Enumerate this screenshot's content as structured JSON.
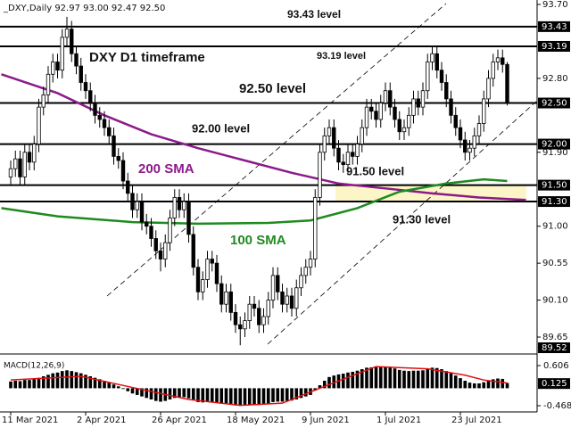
{
  "chart_data": [
    {
      "type": "candlestick",
      "title": "_DXY,Daily  92.97 93.00 92.47 92.50",
      "annotation": "DXY D1 timeframe",
      "categories": [
        "11 Mar 2021",
        null,
        null,
        null,
        null,
        null,
        null,
        null,
        null,
        null,
        null,
        null,
        null,
        null,
        null,
        null,
        "2 Apr 2021",
        null,
        null,
        null,
        null,
        null,
        null,
        null,
        null,
        null,
        null,
        null,
        null,
        null,
        null,
        null,
        "26 Apr 2021",
        null,
        null,
        null,
        null,
        null,
        null,
        null,
        null,
        null,
        null,
        null,
        null,
        null,
        null,
        null,
        "18 May 2021",
        null,
        null,
        null,
        null,
        null,
        null,
        null,
        null,
        null,
        null,
        null,
        null,
        null,
        null,
        null,
        "9 Jun 2021",
        null,
        null,
        null,
        null,
        null,
        null,
        null,
        null,
        null,
        null,
        null,
        null,
        null,
        null,
        null,
        "1 Jul 2021",
        null,
        null,
        null,
        null,
        null,
        null,
        null,
        null,
        null,
        null,
        null,
        null,
        null,
        null,
        null,
        "23 Jul 2021",
        null,
        null,
        null,
        null,
        null,
        null,
        null,
        null,
        null,
        null
      ],
      "open": [
        91.6,
        91.7,
        91.82,
        91.6,
        91.9,
        91.78,
        92.0,
        92.45,
        92.6,
        92.85,
        93.0,
        92.9,
        93.3,
        93.4,
        93.1,
        92.95,
        92.75,
        92.65,
        92.5,
        92.35,
        92.3,
        92.2,
        92.1,
        91.85,
        91.8,
        91.55,
        91.4,
        91.2,
        91.3,
        91.05,
        91.0,
        90.85,
        90.7,
        90.6,
        90.8,
        91.1,
        91.35,
        91.2,
        91.3,
        90.9,
        90.5,
        90.2,
        90.35,
        90.6,
        90.55,
        90.3,
        90.05,
        90.2,
        89.95,
        89.8,
        89.75,
        89.85,
        90.05,
        90.0,
        89.8,
        89.9,
        90.1,
        90.4,
        90.2,
        90.05,
        90.15,
        90.0,
        90.25,
        90.4,
        90.5,
        90.6,
        91.35,
        91.9,
        92.1,
        92.2,
        91.95,
        91.78,
        91.75,
        91.9,
        91.85,
        92.0,
        92.2,
        92.45,
        92.4,
        92.3,
        92.5,
        92.65,
        92.45,
        92.3,
        92.15,
        92.2,
        92.35,
        92.55,
        92.45,
        92.65,
        93.0,
        93.1,
        92.9,
        92.75,
        92.55,
        92.35,
        92.2,
        92.05,
        91.9,
        91.95,
        92.1,
        92.25,
        92.55,
        92.8,
        93.0,
        93.05,
        92.97
      ],
      "high": [
        91.8,
        91.92,
        91.92,
        92.0,
        92.0,
        92.1,
        92.55,
        92.7,
        92.95,
        93.1,
        93.1,
        93.4,
        93.55,
        93.5,
        93.2,
        93.05,
        92.85,
        92.75,
        92.6,
        92.45,
        92.4,
        92.3,
        92.2,
        91.95,
        91.9,
        91.65,
        91.5,
        91.4,
        91.4,
        91.15,
        91.1,
        90.95,
        90.8,
        90.9,
        91.2,
        91.45,
        91.45,
        91.4,
        91.4,
        91.0,
        90.6,
        90.45,
        90.7,
        90.7,
        90.65,
        90.4,
        90.3,
        90.3,
        90.05,
        89.9,
        89.95,
        90.15,
        90.15,
        90.1,
        90.0,
        90.2,
        90.5,
        90.5,
        90.3,
        90.25,
        90.25,
        90.35,
        90.5,
        90.6,
        90.7,
        91.45,
        92.0,
        92.2,
        92.3,
        92.3,
        92.05,
        91.88,
        92.0,
        92.0,
        92.1,
        92.3,
        92.55,
        92.55,
        92.5,
        92.6,
        92.75,
        92.75,
        92.55,
        92.4,
        92.3,
        92.45,
        92.65,
        92.65,
        92.75,
        93.1,
        93.2,
        93.2,
        93.0,
        92.85,
        92.65,
        92.45,
        92.3,
        92.15,
        92.05,
        92.2,
        92.35,
        92.65,
        92.9,
        93.1,
        93.15,
        93.15,
        93.0
      ],
      "low": [
        91.5,
        91.6,
        91.5,
        91.5,
        91.68,
        91.68,
        91.9,
        92.35,
        92.5,
        92.75,
        92.8,
        92.8,
        93.2,
        93.0,
        92.85,
        92.65,
        92.55,
        92.4,
        92.25,
        92.2,
        92.1,
        92.0,
        91.75,
        91.7,
        91.45,
        91.3,
        91.1,
        91.1,
        90.95,
        90.9,
        90.75,
        90.6,
        90.45,
        90.5,
        90.7,
        91.0,
        91.1,
        91.1,
        90.8,
        90.4,
        90.1,
        90.1,
        90.25,
        90.45,
        90.2,
        89.95,
        89.95,
        89.85,
        89.7,
        89.55,
        89.65,
        89.75,
        89.9,
        89.7,
        89.7,
        89.8,
        90.0,
        90.1,
        89.95,
        89.95,
        89.9,
        89.9,
        90.15,
        90.3,
        90.4,
        90.5,
        91.25,
        91.8,
        92.0,
        91.85,
        91.68,
        91.65,
        91.65,
        91.75,
        91.75,
        91.9,
        92.1,
        92.3,
        92.2,
        92.2,
        92.4,
        92.35,
        92.2,
        92.05,
        92.05,
        92.1,
        92.25,
        92.35,
        92.35,
        92.55,
        92.9,
        92.8,
        92.65,
        92.45,
        92.25,
        92.1,
        91.95,
        91.8,
        91.8,
        91.85,
        92.0,
        92.15,
        92.45,
        92.7,
        92.9,
        92.87,
        92.47
      ],
      "close": [
        91.7,
        91.82,
        91.6,
        91.9,
        91.78,
        92.0,
        92.45,
        92.6,
        92.85,
        93.0,
        92.9,
        93.3,
        93.4,
        93.1,
        92.95,
        92.75,
        92.65,
        92.5,
        92.35,
        92.3,
        92.2,
        92.1,
        91.85,
        91.8,
        91.55,
        91.4,
        91.2,
        91.3,
        91.05,
        91.0,
        90.85,
        90.7,
        90.6,
        90.8,
        91.1,
        91.35,
        91.2,
        91.3,
        90.9,
        90.5,
        90.2,
        90.35,
        90.6,
        90.55,
        90.3,
        90.05,
        90.2,
        89.95,
        89.8,
        89.75,
        89.85,
        90.05,
        90.0,
        89.8,
        89.9,
        90.1,
        90.4,
        90.2,
        90.05,
        90.15,
        90.0,
        90.25,
        90.4,
        90.5,
        90.6,
        91.35,
        91.9,
        92.1,
        92.2,
        91.95,
        91.78,
        91.75,
        91.9,
        91.85,
        92.0,
        92.2,
        92.45,
        92.4,
        92.3,
        92.5,
        92.65,
        92.45,
        92.3,
        92.15,
        92.2,
        92.35,
        92.55,
        92.45,
        92.65,
        93.0,
        93.1,
        92.9,
        92.75,
        92.55,
        92.35,
        92.2,
        92.05,
        91.9,
        91.95,
        92.1,
        92.25,
        92.55,
        92.8,
        93.0,
        93.05,
        92.97,
        92.5
      ],
      "up_color": "#ffffff",
      "down_color": "#000000",
      "ylim": [
        89.52,
        93.7
      ],
      "yticks": [
        {
          "value": 93.7,
          "label": "93.70"
        },
        {
          "value": 92.8,
          "label": "92.80"
        },
        {
          "value": 91.9,
          "label": "91.90"
        },
        {
          "value": 91.0,
          "label": "91.00"
        },
        90.55,
        {
          "value": 90.1,
          "label": "90.10"
        },
        89.65
      ],
      "levels": [
        93.43,
        93.19,
        {
          "value": 92.5,
          "label": "92.50"
        },
        {
          "value": 92.0,
          "label": "92.00"
        },
        {
          "value": 91.5,
          "label": "91.50"
        },
        {
          "value": 91.3,
          "label": "91.30"
        }
      ],
      "level_notes": [
        "93.43 level",
        "93.19 level",
        "92.50 level",
        "92.00 level",
        "91.50 level",
        "91.30 level"
      ],
      "highlight_color": "#fbf5c8",
      "series": [
        {
          "name": "200 SMA",
          "color": "#8b1a8b",
          "x": [
            -2,
            10,
            20,
            30,
            40,
            50,
            60,
            70,
            80,
            90,
            100,
            110
          ],
          "values": [
            92.85,
            92.62,
            92.35,
            92.12,
            91.95,
            91.8,
            91.65,
            91.52,
            91.46,
            91.4,
            91.35,
            91.32
          ]
        },
        {
          "name": "100 SMA",
          "color": "#1f8a1f",
          "x": [
            -2,
            10,
            26,
            40,
            55,
            64,
            74,
            83,
            93,
            101,
            106
          ],
          "values": [
            91.22,
            91.12,
            91.05,
            91.03,
            91.04,
            91.07,
            91.22,
            91.42,
            91.52,
            91.57,
            91.55
          ]
        }
      ]
    },
    {
      "type": "bar",
      "title": "MACD(12,26,9)",
      "color": "#000000",
      "values": [
        0.18,
        0.2,
        0.19,
        0.22,
        0.22,
        0.24,
        0.28,
        0.32,
        0.36,
        0.4,
        0.42,
        0.46,
        0.48,
        0.46,
        0.43,
        0.4,
        0.36,
        0.32,
        0.28,
        0.24,
        0.2,
        0.15,
        0.1,
        0.05,
        -0.02,
        -0.08,
        -0.14,
        -0.18,
        -0.22,
        -0.26,
        -0.3,
        -0.34,
        -0.36,
        -0.34,
        -0.3,
        -0.26,
        -0.25,
        -0.24,
        -0.27,
        -0.32,
        -0.37,
        -0.38,
        -0.36,
        -0.36,
        -0.38,
        -0.41,
        -0.42,
        -0.44,
        -0.46,
        -0.47,
        -0.46,
        -0.44,
        -0.44,
        -0.45,
        -0.44,
        -0.41,
        -0.37,
        -0.36,
        -0.36,
        -0.34,
        -0.33,
        -0.3,
        -0.26,
        -0.22,
        -0.18,
        -0.06,
        0.08,
        0.2,
        0.3,
        0.34,
        0.37,
        0.39,
        0.42,
        0.44,
        0.47,
        0.51,
        0.55,
        0.56,
        0.56,
        0.57,
        0.58,
        0.56,
        0.53,
        0.49,
        0.47,
        0.46,
        0.47,
        0.47,
        0.48,
        0.52,
        0.55,
        0.54,
        0.51,
        0.46,
        0.4,
        0.34,
        0.27,
        0.2,
        0.15,
        0.13,
        0.13,
        0.16,
        0.2,
        0.24,
        0.26,
        0.25,
        0.14
      ],
      "signal": {
        "color": "#e01010",
        "x": [
          0,
          15,
          26,
          38,
          49,
          58,
          66,
          78,
          89,
          97,
          101,
          106
        ],
        "values": [
          0.22,
          0.32,
          0.02,
          -0.3,
          -0.46,
          -0.4,
          0.0,
          0.58,
          0.52,
          0.35,
          0.22,
          0.14
        ]
      },
      "ylim": [
        -0.635,
        0.845
      ],
      "yticks": [
        0.606,
        -0.468
      ],
      "current_value": 0.125
    }
  ]
}
